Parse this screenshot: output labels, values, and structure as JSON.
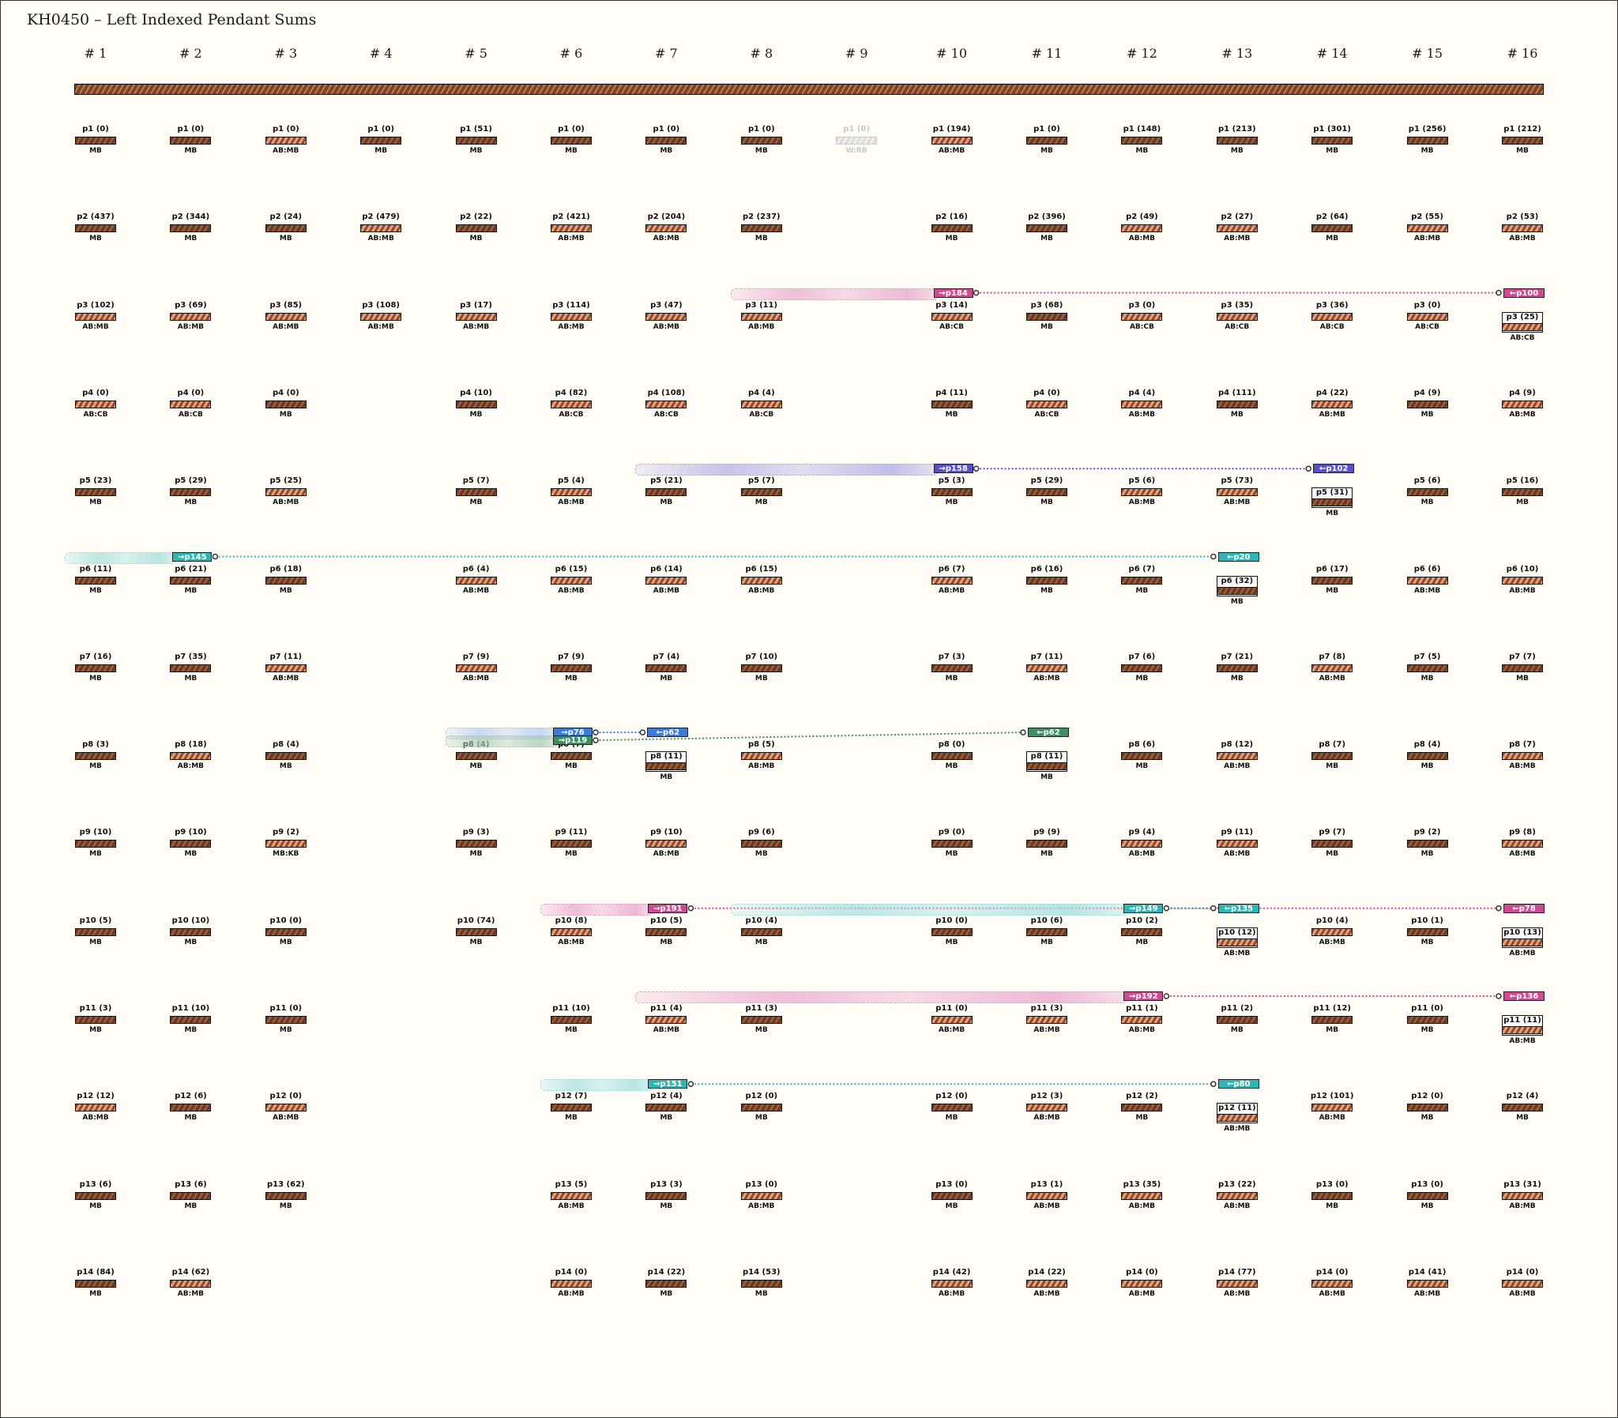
{
  "title": "KH0450 – Left Indexed Pendant Sums",
  "columns": [
    "# 1",
    "# 2",
    "# 3",
    "# 4",
    "# 5",
    "# 6",
    "# 7",
    "# 8",
    "# 9",
    "# 10",
    "# 11",
    "# 12",
    "# 13",
    "# 14",
    "# 15",
    "# 16"
  ],
  "rows": [
    [
      [
        "p1 (0)",
        "MB"
      ],
      [
        "p1 (0)",
        "MB"
      ],
      [
        "p1 (0)",
        "AB:MB"
      ],
      [
        "p1 (0)",
        "MB"
      ],
      [
        "p1 (51)",
        "MB"
      ],
      [
        "p1 (0)",
        "MB"
      ],
      [
        "p1 (0)",
        "MB"
      ],
      [
        "p1 (0)",
        "MB"
      ],
      [
        "p1 (0)",
        "W:RB"
      ],
      [
        "p1 (194)",
        "AB:MB"
      ],
      [
        "p1 (0)",
        "MB"
      ],
      [
        "p1 (148)",
        "MB"
      ],
      [
        "p1 (213)",
        "MB"
      ],
      [
        "p1 (301)",
        "MB"
      ],
      [
        "p1 (256)",
        "MB"
      ],
      [
        "p1 (212)",
        "MB"
      ]
    ],
    [
      [
        "p2 (437)",
        "MB"
      ],
      [
        "p2 (344)",
        "MB"
      ],
      [
        "p2 (24)",
        "MB"
      ],
      [
        "p2 (479)",
        "AB:MB"
      ],
      [
        "p2 (22)",
        "MB"
      ],
      [
        "p2 (421)",
        "AB:MB"
      ],
      [
        "p2 (204)",
        "AB:MB"
      ],
      [
        "p2 (237)",
        "MB"
      ],
      null,
      [
        "p2 (16)",
        "MB"
      ],
      [
        "p2 (396)",
        "MB"
      ],
      [
        "p2 (49)",
        "AB:MB"
      ],
      [
        "p2 (27)",
        "AB:MB"
      ],
      [
        "p2 (64)",
        "MB"
      ],
      [
        "p2 (55)",
        "AB:MB"
      ],
      [
        "p2 (53)",
        "AB:MB"
      ]
    ],
    [
      [
        "p3 (102)",
        "AB:MB"
      ],
      [
        "p3 (69)",
        "AB:MB"
      ],
      [
        "p3 (85)",
        "AB:MB"
      ],
      [
        "p3 (108)",
        "AB:MB"
      ],
      [
        "p3 (17)",
        "AB:MB"
      ],
      [
        "p3 (114)",
        "AB:MB"
      ],
      [
        "p3 (47)",
        "AB:MB"
      ],
      [
        "p3 (11)",
        "AB:MB"
      ],
      null,
      [
        "p3 (14)",
        "AB:CB"
      ],
      [
        "p3 (68)",
        "MB"
      ],
      [
        "p3 (0)",
        "AB:CB"
      ],
      [
        "p3 (35)",
        "AB:CB"
      ],
      [
        "p3 (36)",
        "AB:CB"
      ],
      [
        "p3 (0)",
        "AB:CB"
      ],
      [
        "p3 (25)",
        "AB:CB"
      ]
    ],
    [
      [
        "p4 (0)",
        "AB:CB"
      ],
      [
        "p4 (0)",
        "AB:CB"
      ],
      [
        "p4 (0)",
        "MB"
      ],
      null,
      [
        "p4 (10)",
        "MB"
      ],
      [
        "p4 (82)",
        "AB:CB"
      ],
      [
        "p4 (108)",
        "AB:CB"
      ],
      [
        "p4 (4)",
        "AB:CB"
      ],
      null,
      [
        "p4 (11)",
        "MB"
      ],
      [
        "p4 (0)",
        "AB:CB"
      ],
      [
        "p4 (4)",
        "AB:MB"
      ],
      [
        "p4 (111)",
        "MB"
      ],
      [
        "p4 (22)",
        "AB:MB"
      ],
      [
        "p4 (9)",
        "MB"
      ],
      [
        "p4 (9)",
        "AB:MB"
      ]
    ],
    [
      [
        "p5 (23)",
        "MB"
      ],
      [
        "p5 (29)",
        "MB"
      ],
      [
        "p5 (25)",
        "AB:MB"
      ],
      null,
      [
        "p5 (7)",
        "MB"
      ],
      [
        "p5 (4)",
        "AB:MB"
      ],
      [
        "p5 (21)",
        "MB"
      ],
      [
        "p5 (7)",
        "MB"
      ],
      null,
      [
        "p5 (3)",
        "MB"
      ],
      [
        "p5 (29)",
        "MB"
      ],
      [
        "p5 (6)",
        "AB:MB"
      ],
      [
        "p5 (73)",
        "AB:MB"
      ],
      [
        "p5 (31)",
        "MB"
      ],
      [
        "p5 (6)",
        "MB"
      ],
      [
        "p5 (16)",
        "MB"
      ]
    ],
    [
      [
        "p6 (11)",
        "MB"
      ],
      [
        "p6 (21)",
        "MB"
      ],
      [
        "p6 (18)",
        "MB"
      ],
      null,
      [
        "p6 (4)",
        "AB:MB"
      ],
      [
        "p6 (15)",
        "AB:MB"
      ],
      [
        "p6 (14)",
        "AB:MB"
      ],
      [
        "p6 (15)",
        "AB:MB"
      ],
      null,
      [
        "p6 (7)",
        "AB:MB"
      ],
      [
        "p6 (16)",
        "MB"
      ],
      [
        "p6 (7)",
        "MB"
      ],
      [
        "p6 (32)",
        "MB"
      ],
      [
        "p6 (17)",
        "MB"
      ],
      [
        "p6 (6)",
        "AB:MB"
      ],
      [
        "p6 (10)",
        "AB:MB"
      ]
    ],
    [
      [
        "p7 (16)",
        "MB"
      ],
      [
        "p7 (35)",
        "MB"
      ],
      [
        "p7 (11)",
        "AB:MB"
      ],
      null,
      [
        "p7 (9)",
        "AB:MB"
      ],
      [
        "p7 (9)",
        "MB"
      ],
      [
        "p7 (4)",
        "MB"
      ],
      [
        "p7 (10)",
        "MB"
      ],
      null,
      [
        "p7 (3)",
        "MB"
      ],
      [
        "p7 (11)",
        "AB:MB"
      ],
      [
        "p7 (6)",
        "MB"
      ],
      [
        "p7 (21)",
        "MB"
      ],
      [
        "p7 (8)",
        "AB:MB"
      ],
      [
        "p7 (5)",
        "MB"
      ],
      [
        "p7 (7)",
        "MB"
      ]
    ],
    [
      [
        "p8 (3)",
        "MB"
      ],
      [
        "p8 (18)",
        "AB:MB"
      ],
      [
        "p8 (4)",
        "MB"
      ],
      null,
      [
        "p8 (4)",
        "MB"
      ],
      [
        "p8 (7)",
        "MB"
      ],
      [
        "p8 (11)",
        "MB"
      ],
      [
        "p8 (5)",
        "AB:MB"
      ],
      null,
      [
        "p8 (0)",
        "MB"
      ],
      [
        "p8 (11)",
        "MB"
      ],
      [
        "p8 (6)",
        "MB"
      ],
      [
        "p8 (12)",
        "AB:MB"
      ],
      [
        "p8 (7)",
        "MB"
      ],
      [
        "p8 (4)",
        "MB"
      ],
      [
        "p8 (7)",
        "AB:MB"
      ]
    ],
    [
      [
        "p9 (10)",
        "MB"
      ],
      [
        "p9 (10)",
        "MB"
      ],
      [
        "p9 (2)",
        "MB:KB"
      ],
      null,
      [
        "p9 (3)",
        "MB"
      ],
      [
        "p9 (11)",
        "MB"
      ],
      [
        "p9 (10)",
        "AB:MB"
      ],
      [
        "p9 (6)",
        "MB"
      ],
      null,
      [
        "p9 (0)",
        "MB"
      ],
      [
        "p9 (9)",
        "MB"
      ],
      [
        "p9 (4)",
        "AB:MB"
      ],
      [
        "p9 (11)",
        "AB:MB"
      ],
      [
        "p9 (7)",
        "MB"
      ],
      [
        "p9 (2)",
        "MB"
      ],
      [
        "p9 (8)",
        "AB:MB"
      ]
    ],
    [
      [
        "p10 (5)",
        "MB"
      ],
      [
        "p10 (10)",
        "MB"
      ],
      [
        "p10 (0)",
        "MB"
      ],
      null,
      [
        "p10 (74)",
        "MB"
      ],
      [
        "p10 (8)",
        "AB:MB"
      ],
      [
        "p10 (5)",
        "MB"
      ],
      [
        "p10 (4)",
        "MB"
      ],
      null,
      [
        "p10 (0)",
        "MB"
      ],
      [
        "p10 (6)",
        "MB"
      ],
      [
        "p10 (2)",
        "MB"
      ],
      [
        "p10 (12)",
        "AB:MB"
      ],
      [
        "p10 (4)",
        "AB:MB"
      ],
      [
        "p10 (1)",
        "MB"
      ],
      [
        "p10 (13)",
        "AB:MB"
      ]
    ],
    [
      [
        "p11 (3)",
        "MB"
      ],
      [
        "p11 (10)",
        "MB"
      ],
      [
        "p11 (0)",
        "MB"
      ],
      null,
      null,
      [
        "p11 (10)",
        "MB"
      ],
      [
        "p11 (4)",
        "AB:MB"
      ],
      [
        "p11 (3)",
        "MB"
      ],
      null,
      [
        "p11 (0)",
        "AB:MB"
      ],
      [
        "p11 (3)",
        "AB:MB"
      ],
      [
        "p11 (1)",
        "AB:MB"
      ],
      [
        "p11 (2)",
        "MB"
      ],
      [
        "p11 (12)",
        "MB"
      ],
      [
        "p11 (0)",
        "MB"
      ],
      [
        "p11 (11)",
        "AB:MB"
      ]
    ],
    [
      [
        "p12 (12)",
        "AB:MB"
      ],
      [
        "p12 (6)",
        "MB"
      ],
      [
        "p12 (0)",
        "AB:MB"
      ],
      null,
      null,
      [
        "p12 (7)",
        "MB"
      ],
      [
        "p12 (4)",
        "MB"
      ],
      [
        "p12 (0)",
        "MB"
      ],
      null,
      [
        "p12 (0)",
        "MB"
      ],
      [
        "p12 (3)",
        "AB:MB"
      ],
      [
        "p12 (2)",
        "MB"
      ],
      [
        "p12 (11)",
        "AB:MB"
      ],
      [
        "p12 (101)",
        "AB:MB"
      ],
      [
        "p12 (0)",
        "MB"
      ],
      [
        "p12 (4)",
        "MB"
      ]
    ],
    [
      [
        "p13 (6)",
        "MB"
      ],
      [
        "p13 (6)",
        "MB"
      ],
      [
        "p13 (62)",
        "MB"
      ],
      null,
      null,
      [
        "p13 (5)",
        "AB:MB"
      ],
      [
        "p13 (3)",
        "MB"
      ],
      [
        "p13 (0)",
        "AB:MB"
      ],
      null,
      [
        "p13 (0)",
        "MB"
      ],
      [
        "p13 (1)",
        "AB:MB"
      ],
      [
        "p13 (35)",
        "AB:MB"
      ],
      [
        "p13 (22)",
        "AB:MB"
      ],
      [
        "p13 (0)",
        "MB"
      ],
      [
        "p13 (0)",
        "MB"
      ],
      [
        "p13 (31)",
        "AB:MB"
      ]
    ],
    [
      [
        "p14 (84)",
        "MB"
      ],
      [
        "p14 (62)",
        "AB:MB"
      ],
      null,
      null,
      null,
      [
        "p14 (0)",
        "AB:MB"
      ],
      [
        "p14 (22)",
        "MB"
      ],
      [
        "p14 (53)",
        "MB"
      ],
      null,
      [
        "p14 (42)",
        "AB:MB"
      ],
      [
        "p14 (22)",
        "AB:MB"
      ],
      [
        "p14 (0)",
        "AB:MB"
      ],
      [
        "p14 (77)",
        "AB:MB"
      ],
      [
        "p14 (0)",
        "AB:MB"
      ],
      [
        "p14 (41)",
        "AB:MB"
      ],
      [
        "p14 (0)",
        "AB:MB"
      ]
    ]
  ],
  "links": [
    {
      "row": 2,
      "from": "→p184",
      "from_col": 9,
      "to": "←p100",
      "to_col": 15,
      "span_start_col": 7,
      "color": "#d04a93",
      "band": "#e9a6cc"
    },
    {
      "row": 4,
      "from": "→p158",
      "from_col": 9,
      "to": "←p102",
      "to_col": 13,
      "span_start_col": 6,
      "color": "#5a4fc8",
      "band": "#b2aee6"
    },
    {
      "row": 5,
      "from": "→p145",
      "from_col": 1,
      "to": "←p20",
      "to_col": 12,
      "span_start_col": 0,
      "color": "#2eb5b5",
      "band": "#a4dede"
    },
    {
      "row": 7,
      "from": "→p76",
      "from_col": 5,
      "to": "←p62",
      "to_col": 6,
      "span_start_col": 4,
      "color": "#3d7bd9",
      "band": "#b6cdee"
    },
    {
      "row": 7,
      "from": "→p119",
      "from_col": 5,
      "to": "←p62",
      "to_col": 10,
      "span_start_col": 4,
      "color": "#3e8f62",
      "band": "#a9ccb6"
    },
    {
      "row": 9,
      "from": "→p191",
      "from_col": 6,
      "to": "←p78",
      "to_col": 15,
      "span_start_col": 5,
      "color": "#d04a93",
      "band": "#e9a6cc"
    },
    {
      "row": 9,
      "from": "→p149",
      "from_col": 11,
      "to": "←p135",
      "to_col": 12,
      "span_start_col": 7,
      "color": "#2eb5b5",
      "band": "#a4dede"
    },
    {
      "row": 10,
      "from": "→p192",
      "from_col": 11,
      "to": "←p136",
      "to_col": 15,
      "span_start_col": 6,
      "color": "#d04a93",
      "band": "#e9a6cc"
    },
    {
      "row": 11,
      "from": "→p151",
      "from_col": 6,
      "to": "←p80",
      "to_col": 12,
      "span_start_col": 5,
      "color": "#2eb5b5",
      "band": "#a4dede"
    }
  ],
  "colors": {
    "cord_dark": "#6b3a22",
    "cord_light": "#a4663f",
    "background": "#fffdf6"
  }
}
